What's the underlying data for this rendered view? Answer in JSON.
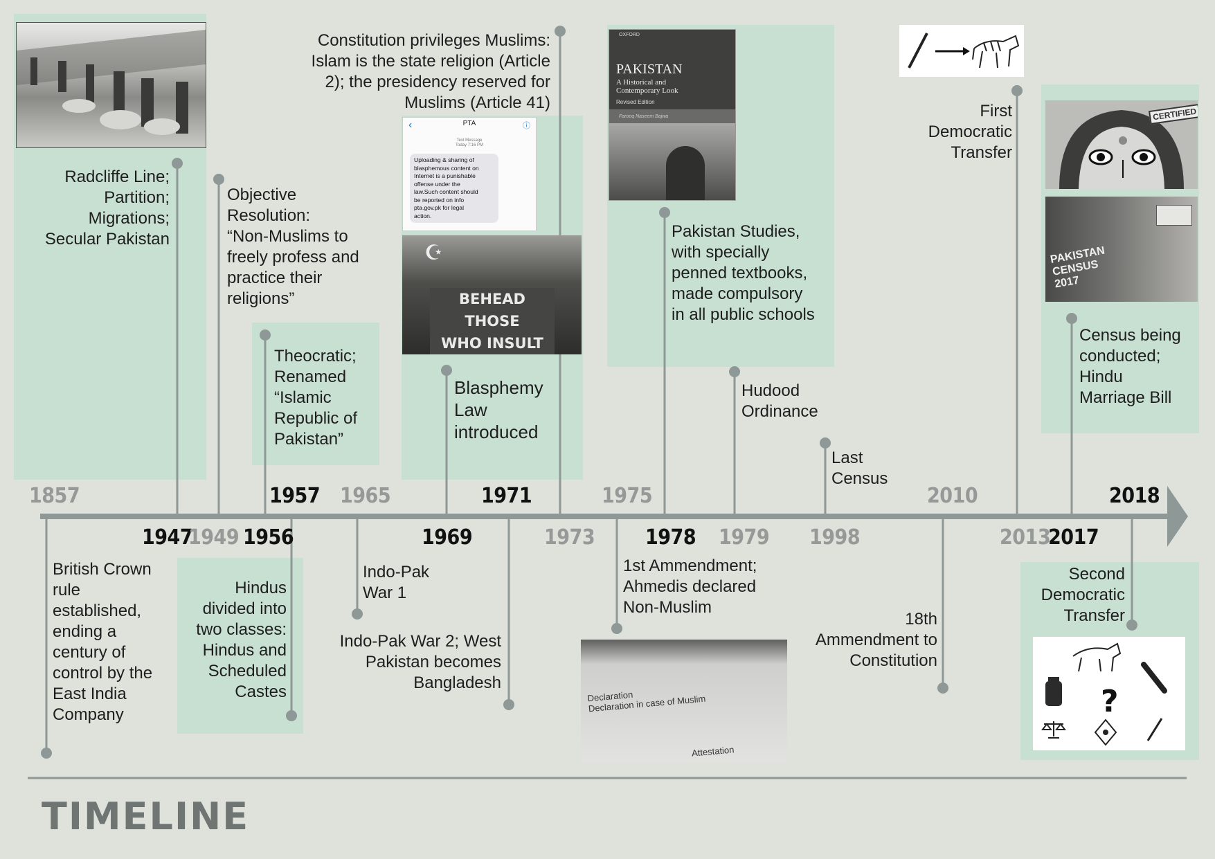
{
  "axis": {
    "years_above": [
      {
        "label": "1857",
        "dark": false
      },
      {
        "label": "1957",
        "dark": true
      },
      {
        "label": "1965",
        "dark": false
      },
      {
        "label": "1971",
        "dark": true
      },
      {
        "label": "1975",
        "dark": false
      },
      {
        "label": "2010",
        "dark": false
      },
      {
        "label": "2018",
        "dark": true
      }
    ],
    "years_below": [
      {
        "label": "1947",
        "dark": true
      },
      {
        "label": "1949",
        "dark": false
      },
      {
        "label": "1956",
        "dark": true
      },
      {
        "label": "1969",
        "dark": true
      },
      {
        "label": "1973",
        "dark": false
      },
      {
        "label": "1978",
        "dark": true
      },
      {
        "label": "1979",
        "dark": false
      },
      {
        "label": "1998",
        "dark": false
      },
      {
        "label": "2013",
        "dark": false
      },
      {
        "label": "2017",
        "dark": true
      }
    ]
  },
  "events": {
    "e1947": "Radcliffe Line;\nPartition;\nMigrations;\nSecular Pakistan",
    "e1949": "Objective\nResolution:\n“Non-Muslims to\nfreely profess and\npractice their\nreligions”",
    "e1956": "Theocratic;\nRenamed\n“Islamic\nRepublic of\nPakistan”",
    "e1973": "Constitution privileges Muslims:\nIslam is the state religion (Article\n2); the presidency reserved for\nMuslims (Article 41)",
    "e1969": "Blasphemy\nLaw\nintroduced",
    "e1978": "Pakistan Studies,\nwith specially\npenned textbooks,\nmade compulsory\nin all public schools",
    "e1979": "Hudood\nOrdinance",
    "e1998": "Last\nCensus",
    "e2013": "First\nDemocratic\nTransfer",
    "e2017": "Census being\nconducted;\nHindu\nMarriage Bill",
    "e1857": "British Crown\nrule\nestablished,\nending a\ncentury of\ncontrol by the\nEast India\nCompany",
    "e1957": "Hindus\ndivided into\ntwo classes:\nHindus and\nScheduled\nCastes",
    "e1965": "Indo-Pak\nWar 1",
    "e1971": "Indo-Pak War 2; West\nPakistan becomes\nBangladesh",
    "e1975": "1st Ammendment;\nAhmedis declared\nNon-Muslim",
    "e2010": "18th\nAmmendment to\nConstitution",
    "e2018": "Second\nDemocratic\nTransfer"
  },
  "images": {
    "sms_header": "PTA",
    "sms_sub": "Text Message\nToday 7:16 PM",
    "sms_body": "Uploading & sharing of\nblasphemous content on\nInternet is a punishable\noffense under the\nlaw.Such content should\nbe reported on info\npta.gov.pk for legal\naction.",
    "banner": "BEHEAD THOSE\nWHO INSULT\nISLAM",
    "book_publisher": "OXFORD",
    "book_title": "PAKISTAN",
    "book_subtitle": "A Historical and\nContemporary Look",
    "book_edition": "Revised Edition",
    "book_author": "Farooq Naseem Bajwa",
    "certified": "CERTIFIED",
    "census_vest": "PAKISTAN\nCENSUS\n2017",
    "form_title": "Declaration\nDeclaration in case of Muslim",
    "form_attestation": "Attestation"
  },
  "footer": {
    "title": "TIMELINE"
  },
  "colors": {
    "panel": "#c8e0d2",
    "axis": "#8e9896",
    "dot": "#8e9896",
    "background": "#dfe1db"
  }
}
